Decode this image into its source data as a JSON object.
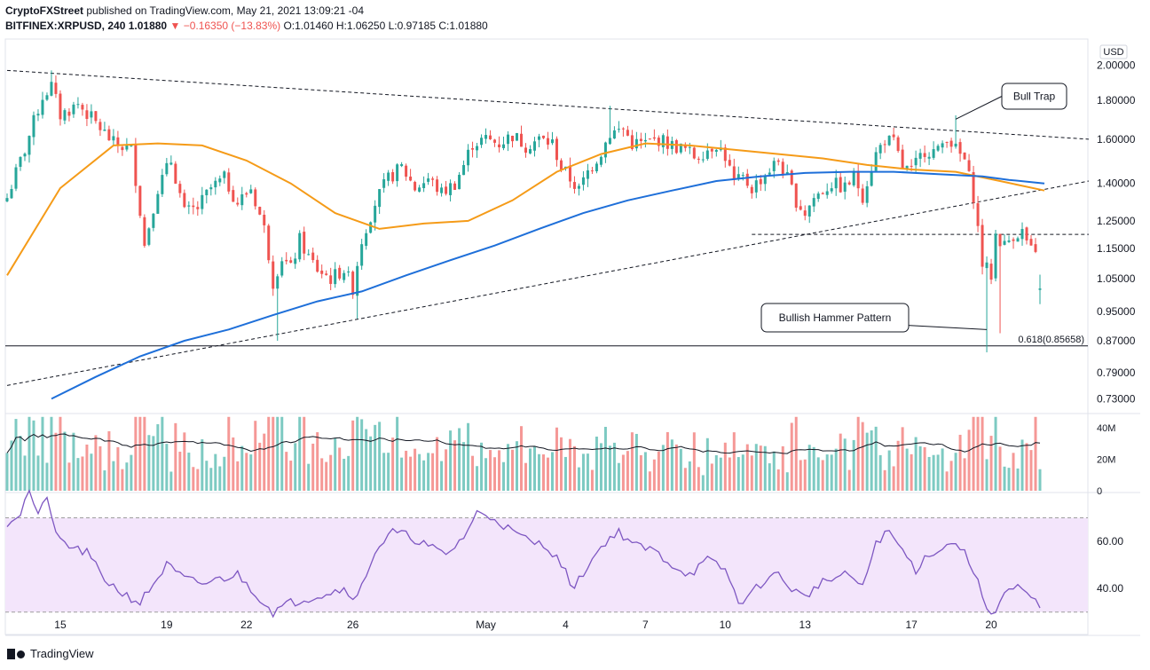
{
  "header": {
    "publisher": "CryptoFXStreet",
    "published_text": "published on TradingView.com, May 21, 2021 13:09:21 -04",
    "symbol": "BITFINEX:XRPUSD, 240",
    "last": "1.01880",
    "change": "−0.16350 (−13.83%)",
    "o_label": "O:",
    "o": "1.01460",
    "h_label": "H:",
    "h": "1.06250",
    "l_label": "L:",
    "l": "0.97185",
    "c_label": "C:",
    "c": "1.01880"
  },
  "footer": {
    "brand": "TradingView"
  },
  "colors": {
    "up": "#26a69a",
    "down": "#ef5350",
    "ma50": "#f59b18",
    "ma200": "#1e6fd9",
    "rsi": "#7e57c2",
    "rsi_band": "#f3e5fb",
    "vol_ma": "#131722"
  },
  "chart_data": {
    "type": "candlestick",
    "currency": "USD",
    "price_ticks": [
      "2.00000",
      "1.80000",
      "1.60000",
      "1.40000",
      "1.25000",
      "1.15000",
      "1.05000",
      "0.95000",
      "0.87000",
      "0.79000",
      "0.73000"
    ],
    "price_tick_values": [
      2.0,
      1.8,
      1.6,
      1.4,
      1.25,
      1.15,
      1.05,
      0.95,
      0.87,
      0.79,
      0.73
    ],
    "ylim": [
      0.7,
      2.12
    ],
    "y_scale": "log",
    "date_ticks": [
      {
        "label": "15",
        "bar": 12
      },
      {
        "label": "19",
        "bar": 36
      },
      {
        "label": "22",
        "bar": 54
      },
      {
        "label": "26",
        "bar": 78
      },
      {
        "label": "May",
        "bar": 108
      },
      {
        "label": "4",
        "bar": 126
      },
      {
        "label": "7",
        "bar": 144
      },
      {
        "label": "10",
        "bar": 162
      },
      {
        "label": "13",
        "bar": 180
      },
      {
        "label": "17",
        "bar": 204
      },
      {
        "label": "20",
        "bar": 222
      }
    ],
    "bar_count": 234,
    "close_anchors": [
      [
        0,
        1.34
      ],
      [
        4,
        1.55
      ],
      [
        8,
        1.82
      ],
      [
        10,
        1.88
      ],
      [
        12,
        1.72
      ],
      [
        16,
        1.78
      ],
      [
        20,
        1.68
      ],
      [
        24,
        1.58
      ],
      [
        28,
        1.55
      ],
      [
        31,
        1.16
      ],
      [
        34,
        1.38
      ],
      [
        37,
        1.5
      ],
      [
        40,
        1.28
      ],
      [
        43,
        1.3
      ],
      [
        46,
        1.38
      ],
      [
        49,
        1.42
      ],
      [
        52,
        1.32
      ],
      [
        55,
        1.38
      ],
      [
        58,
        1.22
      ],
      [
        60,
        1.04
      ],
      [
        62,
        1.12
      ],
      [
        64,
        1.08
      ],
      [
        66,
        1.18
      ],
      [
        68,
        1.12
      ],
      [
        70,
        1.08
      ],
      [
        73,
        1.05
      ],
      [
        76,
        1.08
      ],
      [
        78,
        1.02
      ],
      [
        80,
        1.18
      ],
      [
        83,
        1.32
      ],
      [
        86,
        1.42
      ],
      [
        89,
        1.47
      ],
      [
        92,
        1.38
      ],
      [
        95,
        1.42
      ],
      [
        98,
        1.36
      ],
      [
        101,
        1.4
      ],
      [
        103,
        1.48
      ],
      [
        105,
        1.58
      ],
      [
        108,
        1.6
      ],
      [
        111,
        1.58
      ],
      [
        114,
        1.62
      ],
      [
        117,
        1.57
      ],
      [
        120,
        1.6
      ],
      [
        123,
        1.58
      ],
      [
        125,
        1.47
      ],
      [
        127,
        1.42
      ],
      [
        129,
        1.37
      ],
      [
        131,
        1.45
      ],
      [
        134,
        1.54
      ],
      [
        136,
        1.63
      ],
      [
        139,
        1.65
      ],
      [
        141,
        1.58
      ],
      [
        144,
        1.58
      ],
      [
        147,
        1.6
      ],
      [
        150,
        1.57
      ],
      [
        153,
        1.55
      ],
      [
        155,
        1.52
      ],
      [
        157,
        1.54
      ],
      [
        160,
        1.58
      ],
      [
        162,
        1.52
      ],
      [
        164,
        1.4
      ],
      [
        166,
        1.42
      ],
      [
        168,
        1.38
      ],
      [
        170,
        1.42
      ],
      [
        172,
        1.46
      ],
      [
        174,
        1.5
      ],
      [
        176,
        1.42
      ],
      [
        178,
        1.33
      ],
      [
        180,
        1.28
      ],
      [
        182,
        1.34
      ],
      [
        184,
        1.37
      ],
      [
        186,
        1.4
      ],
      [
        189,
        1.38
      ],
      [
        191,
        1.43
      ],
      [
        193,
        1.35
      ],
      [
        196,
        1.53
      ],
      [
        198,
        1.6
      ],
      [
        200,
        1.58
      ],
      [
        202,
        1.47
      ],
      [
        204,
        1.45
      ],
      [
        207,
        1.55
      ],
      [
        210,
        1.54
      ],
      [
        212,
        1.62
      ],
      [
        214,
        1.55
      ],
      [
        216,
        1.5
      ],
      [
        218,
        1.35
      ],
      [
        219,
        1.22
      ],
      [
        220,
        1.1
      ],
      [
        222,
        1.06
      ],
      [
        223,
        1.2
      ],
      [
        225,
        1.16
      ],
      [
        227,
        1.2
      ],
      [
        229,
        1.21
      ],
      [
        231,
        1.14
      ],
      [
        232,
        1.12
      ],
      [
        233,
        1.02
      ]
    ],
    "last_candle": {
      "open": 1.0146,
      "high": 1.0625,
      "low": 0.97185,
      "close": 1.0188
    },
    "notable_lows": [
      [
        61,
        0.87
      ],
      [
        79,
        0.93
      ],
      [
        221,
        0.84
      ],
      [
        224,
        0.89
      ]
    ],
    "notable_highs": [
      [
        10,
        1.97
      ],
      [
        136,
        1.77
      ],
      [
        214,
        1.72
      ]
    ],
    "moving_averages": [
      {
        "color_key": "ma50",
        "points": [
          [
            0,
            1.06
          ],
          [
            12,
            1.38
          ],
          [
            24,
            1.57
          ],
          [
            34,
            1.58
          ],
          [
            44,
            1.57
          ],
          [
            54,
            1.5
          ],
          [
            64,
            1.4
          ],
          [
            74,
            1.28
          ],
          [
            84,
            1.22
          ],
          [
            94,
            1.24
          ],
          [
            104,
            1.25
          ],
          [
            114,
            1.33
          ],
          [
            124,
            1.45
          ],
          [
            134,
            1.53
          ],
          [
            144,
            1.58
          ],
          [
            154,
            1.57
          ],
          [
            164,
            1.55
          ],
          [
            174,
            1.53
          ],
          [
            184,
            1.51
          ],
          [
            194,
            1.48
          ],
          [
            204,
            1.46
          ],
          [
            214,
            1.45
          ],
          [
            224,
            1.41
          ],
          [
            234,
            1.37
          ]
        ]
      },
      {
        "color_key": "ma200",
        "points": [
          [
            10,
            0.73
          ],
          [
            20,
            0.78
          ],
          [
            30,
            0.83
          ],
          [
            40,
            0.87
          ],
          [
            50,
            0.9
          ],
          [
            60,
            0.94
          ],
          [
            70,
            0.98
          ],
          [
            80,
            1.01
          ],
          [
            90,
            1.06
          ],
          [
            100,
            1.11
          ],
          [
            110,
            1.16
          ],
          [
            120,
            1.22
          ],
          [
            130,
            1.28
          ],
          [
            140,
            1.33
          ],
          [
            150,
            1.37
          ],
          [
            160,
            1.41
          ],
          [
            170,
            1.43
          ],
          [
            180,
            1.445
          ],
          [
            190,
            1.45
          ],
          [
            200,
            1.45
          ],
          [
            210,
            1.44
          ],
          [
            220,
            1.43
          ],
          [
            226,
            1.415
          ],
          [
            234,
            1.4
          ]
        ]
      }
    ],
    "trendlines": [
      {
        "style": "dashed",
        "from": [
          0,
          1.97
        ],
        "to": [
          244,
          1.6
        ]
      },
      {
        "style": "dashed",
        "from": [
          0,
          0.76
        ],
        "to": [
          244,
          1.41
        ]
      },
      {
        "style": "dashed",
        "from": [
          168,
          1.2
        ],
        "to": [
          244,
          1.2
        ]
      }
    ],
    "fib_level": {
      "label": "0.618(0.85658)",
      "value": 0.85658
    },
    "annotations": [
      {
        "text": "Bull Trap",
        "target": [
          214,
          1.7
        ],
        "box_x": 1129,
        "box_y": 94,
        "box_w": 73,
        "box_h": 29
      },
      {
        "text": "Bullish Hammer Pattern",
        "target": [
          221,
          0.9
        ],
        "box_x": 858,
        "box_y": 342,
        "box_w": 166,
        "box_h": 32
      }
    ],
    "volume": {
      "ticks": [
        "40M",
        "20M",
        "0"
      ],
      "tick_values": [
        40,
        20,
        0
      ],
      "max": 48,
      "unit": "M"
    },
    "rsi": {
      "ticks": [
        "60.00",
        "40.00"
      ],
      "tick_values": [
        60,
        40
      ],
      "band": [
        30,
        70
      ],
      "ylim": [
        25,
        80
      ],
      "anchors": [
        [
          0,
          68
        ],
        [
          3,
          72
        ],
        [
          5,
          82
        ],
        [
          7,
          70
        ],
        [
          9,
          80
        ],
        [
          11,
          62
        ],
        [
          14,
          58
        ],
        [
          18,
          55
        ],
        [
          22,
          44
        ],
        [
          26,
          38
        ],
        [
          30,
          34
        ],
        [
          33,
          42
        ],
        [
          36,
          50
        ],
        [
          40,
          44
        ],
        [
          44,
          42
        ],
        [
          48,
          44
        ],
        [
          52,
          46
        ],
        [
          56,
          38
        ],
        [
          60,
          30
        ],
        [
          64,
          34
        ],
        [
          68,
          36
        ],
        [
          72,
          38
        ],
        [
          76,
          40
        ],
        [
          79,
          36
        ],
        [
          83,
          56
        ],
        [
          87,
          64
        ],
        [
          91,
          62
        ],
        [
          95,
          58
        ],
        [
          99,
          54
        ],
        [
          103,
          62
        ],
        [
          106,
          72
        ],
        [
          110,
          70
        ],
        [
          114,
          64
        ],
        [
          118,
          60
        ],
        [
          122,
          58
        ],
        [
          125,
          50
        ],
        [
          128,
          40
        ],
        [
          131,
          50
        ],
        [
          135,
          60
        ],
        [
          138,
          64
        ],
        [
          142,
          58
        ],
        [
          146,
          56
        ],
        [
          150,
          50
        ],
        [
          154,
          46
        ],
        [
          158,
          52
        ],
        [
          162,
          48
        ],
        [
          165,
          34
        ],
        [
          168,
          38
        ],
        [
          171,
          44
        ],
        [
          174,
          46
        ],
        [
          177,
          40
        ],
        [
          180,
          36
        ],
        [
          183,
          42
        ],
        [
          186,
          44
        ],
        [
          190,
          46
        ],
        [
          193,
          40
        ],
        [
          196,
          60
        ],
        [
          199,
          64
        ],
        [
          202,
          56
        ],
        [
          205,
          48
        ],
        [
          208,
          55
        ],
        [
          211,
          57
        ],
        [
          214,
          60
        ],
        [
          217,
          52
        ],
        [
          219,
          42
        ],
        [
          221,
          32
        ],
        [
          223,
          30
        ],
        [
          225,
          38
        ],
        [
          228,
          40
        ],
        [
          231,
          36
        ],
        [
          233,
          32
        ]
      ]
    }
  }
}
